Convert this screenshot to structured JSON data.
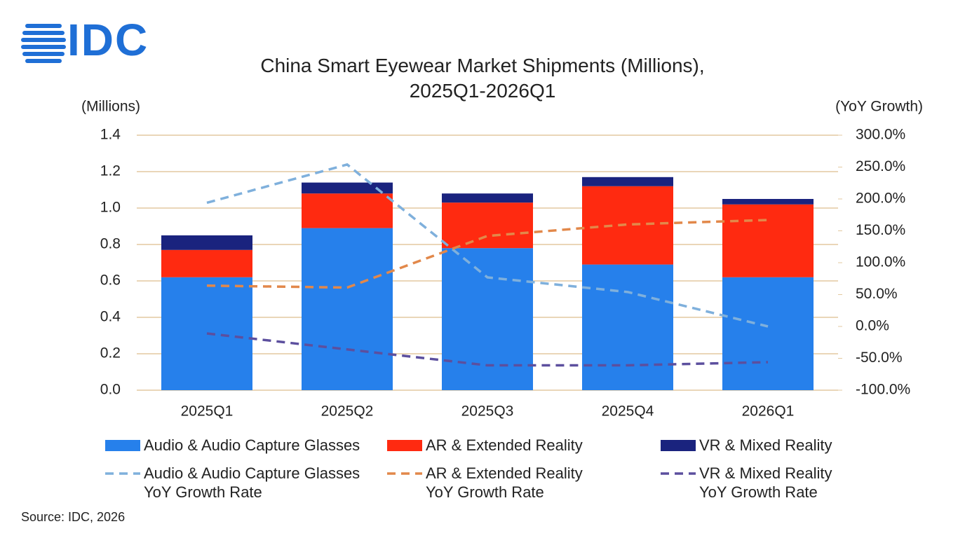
{
  "logo": "IDC",
  "source": "Source: IDC, 2026",
  "chart_data": {
    "type": "bar",
    "stacked": true,
    "title": "China Smart Eyewear Market Shipments (Millions),\n2025Q1-2026Q1",
    "y_label": "(Millions)",
    "y2_label": "(YoY Growth)",
    "categories": [
      "2025Q1",
      "2025Q2",
      "2025Q3",
      "2025Q4",
      "2026Q1"
    ],
    "ylim": [
      0,
      1.4
    ],
    "yticks": [
      {
        "value": 0,
        "label": "0.0"
      },
      0.2,
      0.4,
      0.6,
      0.8,
      {
        "value": 1,
        "label": "1.0"
      },
      1.2,
      1.4
    ],
    "y2lim": [
      -100,
      300
    ],
    "y2ticks": [
      {
        "value": -100,
        "label": "-100.0%"
      },
      {
        "value": -50,
        "label": "-50.0%"
      },
      {
        "value": 0,
        "label": "0.0%"
      },
      {
        "value": 50,
        "label": "50.0%"
      },
      {
        "value": 100,
        "label": "100.0%"
      },
      {
        "value": 150,
        "label": "150.0%"
      },
      {
        "value": 200,
        "label": "200.0%"
      },
      {
        "value": 250,
        "label": "250.0%"
      },
      {
        "value": 300,
        "label": "300.0%"
      }
    ],
    "grid": true,
    "series": [
      {
        "name": "Audio & Audio Capture Glasses",
        "type": "bar",
        "color": "#2680eb",
        "values": [
          0.62,
          0.89,
          0.78,
          0.69,
          0.62
        ]
      },
      {
        "name": "AR & Extended Reality",
        "type": "bar",
        "color": "#ff2a10",
        "values": [
          0.15,
          0.19,
          0.25,
          0.43,
          0.4
        ]
      },
      {
        "name": "VR & Mixed Reality",
        "type": "bar",
        "color": "#1a237e",
        "values": [
          0.08,
          0.06,
          0.05,
          0.05,
          0.03
        ]
      },
      {
        "name": "Audio & Audio Capture Glasses\nYoY Growth Rate",
        "type": "line",
        "axis": "y2",
        "dashed": true,
        "color": "#7fb0dc",
        "values": [
          194,
          254,
          77,
          54,
          0
        ]
      },
      {
        "name": "AR & Extended Reality\nYoY Growth Rate",
        "type": "line",
        "axis": "y2",
        "dashed": true,
        "color": "#e2884a",
        "values": [
          64,
          61,
          142,
          160,
          167
        ]
      },
      {
        "name": "VR & Mixed Reality\nYoY Growth Rate",
        "type": "line",
        "axis": "y2",
        "dashed": true,
        "color": "#5c4f9e",
        "values": [
          -11,
          -36,
          -61,
          -61,
          -56
        ]
      }
    ]
  }
}
